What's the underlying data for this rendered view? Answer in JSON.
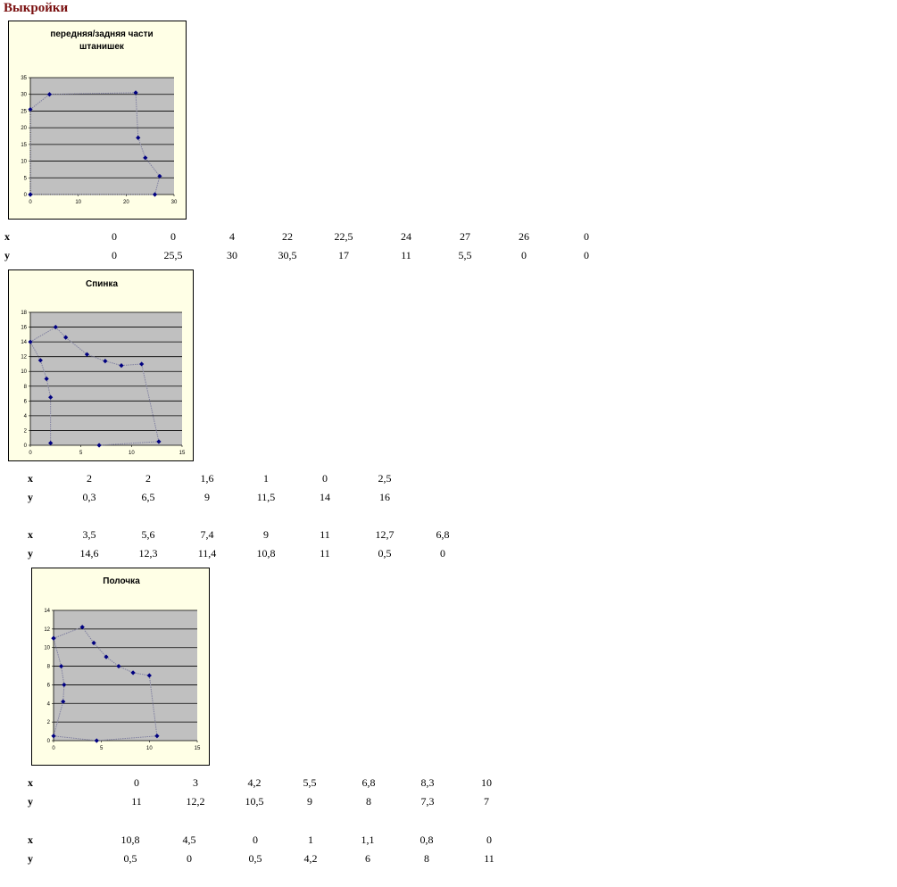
{
  "page": {
    "title": "Выкройки"
  },
  "chart_data": [
    {
      "type": "scatter",
      "title_lines": [
        "передняя/задняя части",
        "штанишек"
      ],
      "xlim": [
        0,
        30
      ],
      "ylim": [
        0,
        35
      ],
      "x_ticks": [
        0,
        10,
        20,
        30
      ],
      "y_ticks": [
        0,
        5,
        10,
        15,
        20,
        25,
        30,
        35
      ],
      "grid": true,
      "series": [
        {
          "x": [
            0,
            0,
            4,
            22,
            22.5,
            24,
            27,
            26,
            0
          ],
          "y": [
            0,
            25.5,
            30,
            30.5,
            17,
            11,
            5.5,
            0,
            0
          ]
        }
      ]
    },
    {
      "type": "scatter",
      "title_lines": [
        "Спинка"
      ],
      "xlim": [
        0,
        15
      ],
      "ylim": [
        0,
        18
      ],
      "x_ticks": [
        0,
        5,
        10,
        15
      ],
      "y_ticks": [
        0,
        2,
        4,
        6,
        8,
        10,
        12,
        14,
        16,
        18
      ],
      "grid": true,
      "series": [
        {
          "x": [
            2,
            2,
            1.6,
            1,
            0,
            2.5,
            3.5,
            5.6,
            7.4,
            9,
            11,
            12.7,
            6.8
          ],
          "y": [
            0.3,
            6.5,
            9,
            11.5,
            14,
            16,
            14.6,
            12.3,
            11.4,
            10.8,
            11,
            0.5,
            0
          ]
        }
      ]
    },
    {
      "type": "scatter",
      "title_lines": [
        "Полочка"
      ],
      "xlim": [
        0,
        15
      ],
      "ylim": [
        0,
        14
      ],
      "x_ticks": [
        0,
        5,
        10,
        15
      ],
      "y_ticks": [
        0,
        2,
        4,
        6,
        8,
        10,
        12,
        14
      ],
      "grid": true,
      "series": [
        {
          "x": [
            0,
            3,
            4.2,
            5.5,
            6.8,
            8.3,
            10,
            10.8,
            4.5,
            0,
            1,
            1.1,
            0.8,
            0
          ],
          "y": [
            11,
            12.2,
            10.5,
            9,
            8,
            7.3,
            7,
            0.5,
            0,
            0.5,
            4.2,
            6,
            8,
            11
          ]
        }
      ]
    }
  ],
  "tables": [
    [
      {
        "x_label": "x",
        "y_label": "y",
        "x": [
          "0",
          "0",
          "4",
          "22",
          "22,5",
          "24",
          "27",
          "26",
          "0"
        ],
        "y": [
          "0",
          "25,5",
          "30",
          "30,5",
          "17",
          "11",
          "5,5",
          "0",
          "0"
        ]
      }
    ],
    [
      {
        "x_label": "x",
        "y_label": "y",
        "x": [
          "2",
          "2",
          "1,6",
          "1",
          "0",
          "2,5"
        ],
        "y": [
          "0,3",
          "6,5",
          "9",
          "11,5",
          "14",
          "16"
        ]
      },
      {
        "x_label": "x",
        "y_label": "y",
        "x": [
          "3,5",
          "5,6",
          "7,4",
          "9",
          "11",
          "12,7",
          "6,8"
        ],
        "y": [
          "14,6",
          "12,3",
          "11,4",
          "10,8",
          "11",
          "0,5",
          "0"
        ]
      }
    ],
    [
      {
        "x_label": "x",
        "y_label": "y",
        "x": [
          "0",
          "3",
          "4,2",
          "5,5",
          "6,8",
          "8,3",
          "10"
        ],
        "y": [
          "11",
          "12,2",
          "10,5",
          "9",
          "8",
          "7,3",
          "7"
        ]
      },
      {
        "x_label": "x",
        "y_label": "y",
        "x": [
          "10,8",
          "4,5",
          "0",
          "1",
          "1,1",
          "0,8",
          "0"
        ],
        "y": [
          "0,5",
          "0",
          "0,5",
          "4,2",
          "6",
          "8",
          "11"
        ]
      }
    ]
  ],
  "colors": {
    "frame_bg": "#ffffe6",
    "plot_bg": "#c0c0c0",
    "marker": "#000080",
    "segment": "#8080a0",
    "title": "#7a1010"
  }
}
